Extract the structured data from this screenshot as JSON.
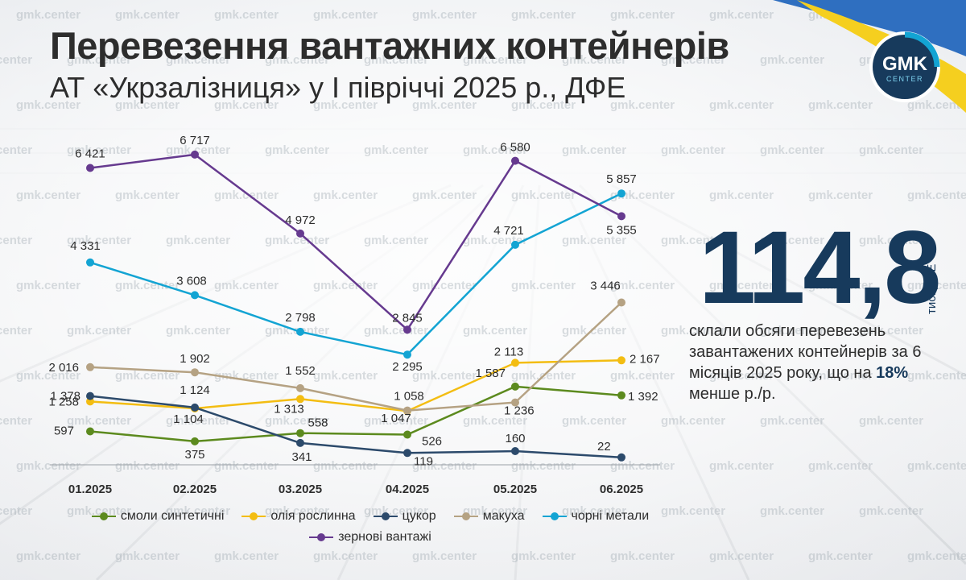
{
  "header": {
    "title": "Перевезення вантажних контейнерів",
    "subtitle": "АТ «Укрзалізниця» у І півріччі 2025 р., ДФЕ"
  },
  "logo": {
    "line1": "GMK",
    "line2": "CENTER"
  },
  "watermark": "gmk.center",
  "highlight": {
    "value": "114,8",
    "unit": "тис. ДФЕ",
    "text_before": "склали обсяги перевезень завантажених контейнерів за 6 місяців 2025 року, що на ",
    "text_bold": "18%",
    "text_after": " менше р./р."
  },
  "colors": {
    "title": "#2d2d2d",
    "accent": "#173a5c",
    "flag_blue": "#2f6fc0",
    "flag_yellow": "#f5cf1f"
  },
  "chart_data": {
    "type": "line",
    "title": "",
    "xlabel": "",
    "ylabel": "",
    "categories": [
      "01.2025",
      "02.2025",
      "03.2025",
      "04.2025",
      "05.2025",
      "06.2025"
    ],
    "ylim": [
      0,
      7000
    ],
    "grid": false,
    "legend": "bottom",
    "series": [
      {
        "name": "смоли синтетичні",
        "color": "#5c8a1e",
        "values": [
          597,
          375,
          558,
          526,
          1587,
          1392
        ],
        "labels": [
          "597",
          "375",
          "558",
          "526",
          "1 587",
          "1 392"
        ]
      },
      {
        "name": "олія рослинна",
        "color": "#f3bd12",
        "values": [
          1258,
          1104,
          1313,
          1047,
          2113,
          2167
        ],
        "labels": [
          "1 258",
          "1 104",
          "1 313",
          "1 047",
          "2 113",
          "2 167"
        ]
      },
      {
        "name": "цукор",
        "color": "#2c4a6b",
        "values": [
          1378,
          1124,
          341,
          119,
          160,
          22
        ],
        "labels": [
          "1 378",
          "1 124",
          "341",
          "119",
          "160",
          "22"
        ]
      },
      {
        "name": "макуха",
        "color": "#b5a283",
        "values": [
          2016,
          1902,
          1552,
          1058,
          1236,
          3446
        ],
        "labels": [
          "2 016",
          "1 902",
          "1 552",
          "1 058",
          "1 236",
          "3 446"
        ]
      },
      {
        "name": "чорні метали",
        "color": "#13a4d3",
        "values": [
          4331,
          3608,
          2798,
          2295,
          4721,
          5857
        ],
        "labels": [
          "4 331",
          "3 608",
          "2 798",
          "2 295",
          "4 721",
          "5 857"
        ]
      },
      {
        "name": "зернові вантажі",
        "color": "#663a8f",
        "values": [
          6421,
          6717,
          4972,
          2845,
          6580,
          5355
        ],
        "labels": [
          "6 421",
          "6 717",
          "4 972",
          "2 845",
          "6 580",
          "5 355"
        ]
      }
    ]
  }
}
